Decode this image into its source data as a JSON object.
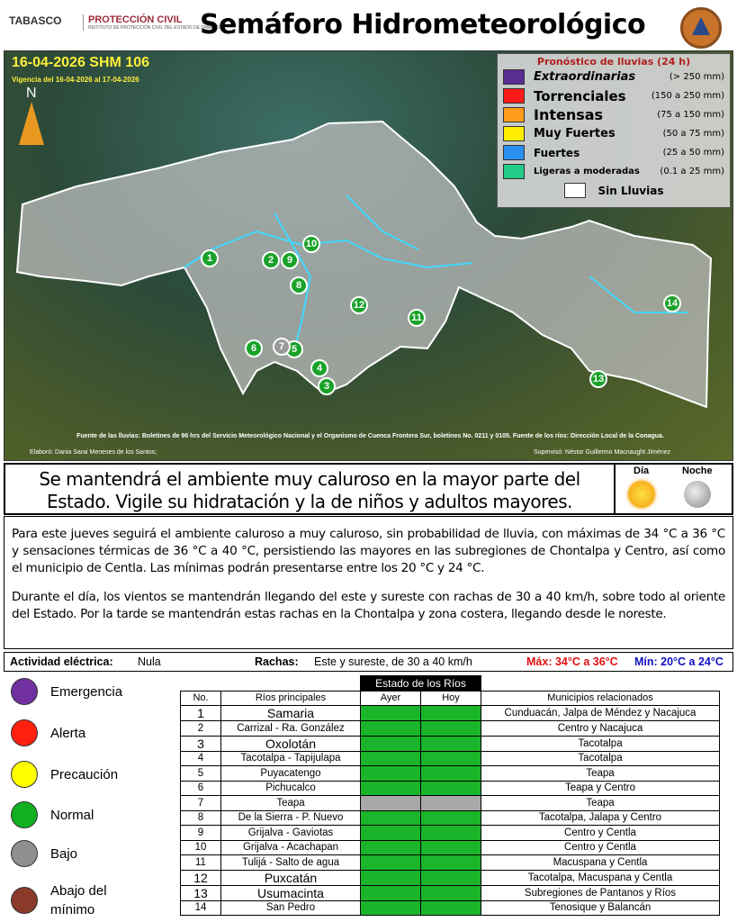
{
  "header": {
    "logo_tabasco": "TABASCO",
    "logo_pc": "PROTECCIÓN CIVIL",
    "logo_pc_sub": "INSTITUTO DE PROTECCIÓN CIVIL DEL ESTADO DE TABASCO",
    "title": "Semáforo Hidrometeorológico"
  },
  "map": {
    "bulletin": "16-04-2026 SHM 106",
    "validity": "Vigencia del 16-04-2026 al 17-04-2026",
    "north": "N",
    "source": "Fuente de las lluvias: Boletines de 96 hrs del Servicio Meteorológico Nacional y el Organismo de Cuenca Frontera Sur, boletines No. 0211 y 0105. Fuente de los ríos: Dirección Local de la Conagua.",
    "elaboro": "Elaboró: Dania Sarai Meneses de los Santos;",
    "superviso": "Supervisó: Néstor Guillermo Macnaught Jiménez",
    "markers": [
      {
        "n": "1",
        "status": "normal"
      },
      {
        "n": "2",
        "status": "normal"
      },
      {
        "n": "3",
        "status": "normal"
      },
      {
        "n": "4",
        "status": "normal"
      },
      {
        "n": "5",
        "status": "normal"
      },
      {
        "n": "6",
        "status": "normal"
      },
      {
        "n": "7",
        "status": "bajo"
      },
      {
        "n": "8",
        "status": "normal"
      },
      {
        "n": "9",
        "status": "normal"
      },
      {
        "n": "10",
        "status": "normal"
      },
      {
        "n": "11",
        "status": "normal"
      },
      {
        "n": "12",
        "status": "normal"
      },
      {
        "n": "13",
        "status": "normal"
      },
      {
        "n": "14",
        "status": "normal"
      }
    ]
  },
  "rain_legend": {
    "title": "Pronóstico de lluvias (24 h)",
    "items": [
      {
        "label": "Extraordinarias",
        "range": "(> 250 mm)",
        "color": "#5a2d91"
      },
      {
        "label": "Torrenciales",
        "range": "(150 a 250 mm)",
        "color": "#ff1a1a"
      },
      {
        "label": "Intensas",
        "range": "(75 a 150 mm)",
        "color": "#ff9a1a"
      },
      {
        "label": "Muy Fuertes",
        "range": "(50 a 75 mm)",
        "color": "#ffee00"
      },
      {
        "label": "Fuertes",
        "range": "(25 a 50 mm)",
        "color": "#2a90f0"
      },
      {
        "label": "Ligeras a moderadas",
        "range": "(0.1 a 25 mm)",
        "color": "#22cc88"
      }
    ],
    "none": "Sin Lluvias"
  },
  "message": {
    "text": "Se mantendrá el ambiente muy caluroso en la mayor parte del Estado. Vigile su hidratación y la de niños y adultos mayores.",
    "day": "Día",
    "night": "Noche"
  },
  "forecast": {
    "p1": "Para este jueves seguirá el ambiente caluroso a muy caluroso, sin probabilidad de lluvia, con máximas de 34 °C a 36 °C y sensaciones térmicas de 36 °C a 40 °C, persistiendo las mayores en las subregiones de Chontalpa y Centro, así como el municipio de Centla. Las mínimas podrán presentarse entre los 20 °C y 24 °C.",
    "p2": "Durante el día, los vientos se mantendrán llegando del este y sureste con rachas de 30 a 40 km/h, sobre todo al oriente del Estado. Por la tarde se mantendrán estas rachas en la Chontalpa y zona costera, llegando desde le noreste."
  },
  "info": {
    "electric_label": "Actividad eléctrica:",
    "electric_value": "Nula",
    "gusts_label": "Rachas:",
    "gusts_value": "Este y sureste, de 30 a 40  km/h",
    "max": "Máx: 34°C a 36°C",
    "min": "Mín: 20°C a 24°C"
  },
  "status_legend": [
    {
      "label": "Emergencia",
      "color": "#7030a0"
    },
    {
      "label": "Alerta",
      "color": "#ff2010"
    },
    {
      "label": "Precaución",
      "color": "#ffff00"
    },
    {
      "label": "Normal",
      "color": "#10b020"
    },
    {
      "label": "Bajo",
      "color": "#909090"
    },
    {
      "label": "Abajo del mínimo",
      "color": "#8b3a2a"
    }
  ],
  "rivers": {
    "title": "Estado de los Ríos",
    "headers": [
      "No.",
      "Ríos principales",
      "Ayer",
      "Hoy",
      "Municipios relacionados"
    ],
    "rows": [
      {
        "no": "1",
        "name": "Samaria",
        "ayer": "normal",
        "hoy": "normal",
        "mun": "Cunduacán, Jalpa de Méndez y Nacajuca"
      },
      {
        "no": "2",
        "name": "Carrizal - Ra. González",
        "ayer": "normal",
        "hoy": "normal",
        "mun": "Centro y Nacajuca"
      },
      {
        "no": "3",
        "name": "Oxolotán",
        "ayer": "normal",
        "hoy": "normal",
        "mun": "Tacotalpa"
      },
      {
        "no": "4",
        "name": "Tacotalpa - Tapijulapa",
        "ayer": "normal",
        "hoy": "normal",
        "mun": "Tacotalpa"
      },
      {
        "no": "5",
        "name": "Puyacatengo",
        "ayer": "normal",
        "hoy": "normal",
        "mun": "Teapa"
      },
      {
        "no": "6",
        "name": "Pichucalco",
        "ayer": "normal",
        "hoy": "normal",
        "mun": "Teapa y Centro"
      },
      {
        "no": "7",
        "name": "Teapa",
        "ayer": "bajo",
        "hoy": "bajo",
        "mun": "Teapa"
      },
      {
        "no": "8",
        "name": "De la Sierra - P. Nuevo",
        "ayer": "normal",
        "hoy": "normal",
        "mun": "Tacotalpa, Jalapa y Centro"
      },
      {
        "no": "9",
        "name": "Grijalva - Gaviotas",
        "ayer": "normal",
        "hoy": "normal",
        "mun": "Centro y Centla"
      },
      {
        "no": "10",
        "name": "Grijalva - Acachapan",
        "ayer": "normal",
        "hoy": "normal",
        "mun": "Centro y Centla"
      },
      {
        "no": "11",
        "name": "Tulijá - Salto de agua",
        "ayer": "normal",
        "hoy": "normal",
        "mun": "Macuspana y Centla"
      },
      {
        "no": "12",
        "name": "Puxcatán",
        "ayer": "normal",
        "hoy": "normal",
        "mun": "Tacotalpa, Macuspana y Centla"
      },
      {
        "no": "13",
        "name": "Usumacinta",
        "ayer": "normal",
        "hoy": "normal",
        "mun": "Subregiones de Pantanos y Ríos"
      },
      {
        "no": "14",
        "name": "San Pedro",
        "ayer": "normal",
        "hoy": "normal",
        "mun": "Tenosique y Balancán"
      }
    ]
  }
}
